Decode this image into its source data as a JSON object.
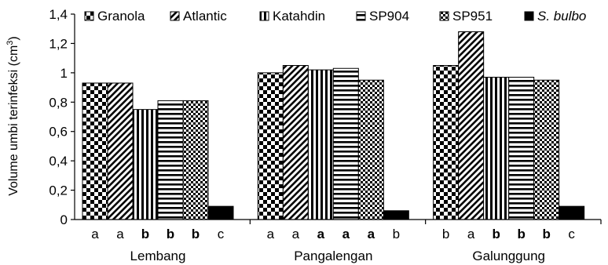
{
  "chart_data": {
    "type": "bar",
    "categories": [
      "Lembang",
      "Pangalengan",
      "Galunggung"
    ],
    "series": [
      {
        "name": "Granola",
        "values": [
          0.93,
          1.0,
          1.05
        ],
        "pattern": "checker"
      },
      {
        "name": "Atlantic",
        "values": [
          0.93,
          1.05,
          1.28
        ],
        "pattern": "diagonal"
      },
      {
        "name": "Katahdin",
        "values": [
          0.75,
          1.02,
          0.97
        ],
        "pattern": "vertical"
      },
      {
        "name": "SP904",
        "values": [
          0.81,
          1.03,
          0.97
        ],
        "pattern": "horizontal"
      },
      {
        "name": "SP951",
        "values": [
          0.81,
          0.95,
          0.95
        ],
        "pattern": "finechecker"
      },
      {
        "name": "S. bulbo",
        "italic": true,
        "values": [
          0.09,
          0.06,
          0.09
        ],
        "pattern": "solid"
      }
    ],
    "significance": [
      [
        {
          "t": "a",
          "bold": false
        },
        {
          "t": "a",
          "bold": false
        },
        {
          "t": "b",
          "bold": true
        },
        {
          "t": "b",
          "bold": true
        },
        {
          "t": "b",
          "bold": true
        },
        {
          "t": "c",
          "bold": false
        }
      ],
      [
        {
          "t": "a",
          "bold": false
        },
        {
          "t": "a",
          "bold": false
        },
        {
          "t": "a",
          "bold": true
        },
        {
          "t": "a",
          "bold": true
        },
        {
          "t": "a",
          "bold": true
        },
        {
          "t": "b",
          "bold": false
        }
      ],
      [
        {
          "t": "b",
          "bold": false
        },
        {
          "t": "a",
          "bold": false
        },
        {
          "t": "b",
          "bold": true
        },
        {
          "t": "b",
          "bold": true
        },
        {
          "t": "b",
          "bold": true
        },
        {
          "t": "c",
          "bold": false
        }
      ]
    ],
    "yticks": [
      "0",
      "0,2",
      "0,4",
      "0,6",
      "0,8",
      "1",
      "1,2",
      "1,4"
    ],
    "ylabel": "Volume umbi terinfeksi (cm",
    "ylabel_sup": "3",
    "ylabel_end": ")",
    "ylim": [
      0,
      1.4
    ],
    "legend_position": "top",
    "grid": false,
    "colors": {
      "fill": "#000000",
      "background": "#ffffff"
    }
  }
}
